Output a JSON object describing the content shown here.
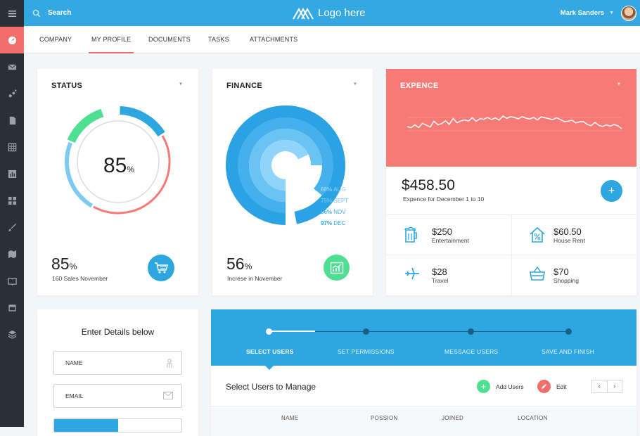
{
  "topbar": {
    "search_label": "Search",
    "logo_text": "Logo here",
    "user_name": "Mark Sanders"
  },
  "tabs": [
    "COMPANY",
    "MY PROFILE",
    "DOCUMENTS",
    "TASKS",
    "ATTACHMENTS"
  ],
  "active_tab": "MY PROFILE",
  "sidebar_icons": [
    "menu-icon",
    "dashboard-icon",
    "mail-icon",
    "graph-nodes-icon",
    "document-icon",
    "table-icon",
    "bar-chart-icon",
    "widgets-icon",
    "brush-icon",
    "map-icon",
    "book-icon",
    "calendar-icon",
    "layers-icon"
  ],
  "status": {
    "title": "STATUS",
    "center_value": "85",
    "center_unit": "%",
    "value": "85",
    "unit": "%",
    "caption": "160 Sales November",
    "ring_segments_percent": {
      "blue": 16,
      "red": 42,
      "light_blue": 23,
      "green": 14
    }
  },
  "finance": {
    "title": "FINANCE",
    "value": "56",
    "unit": "%",
    "caption": "Increse in November",
    "rings": [
      {
        "value": "68%",
        "label": "AUG",
        "color": "#8fd5fb"
      },
      {
        "value": "75%",
        "label": "SEPT",
        "color": "#6ac3f3"
      },
      {
        "value": "86%",
        "label": "NOV",
        "color": "#45b1ec"
      },
      {
        "value": "97%",
        "label": "DEC",
        "color": "#2aa2e4"
      }
    ]
  },
  "expence": {
    "title": "EXPENCE",
    "amount": "$458.50",
    "caption": "Expence for December 1 to 10",
    "items": [
      {
        "amount": "$250",
        "label": "Entertainment",
        "icon": "beer-icon"
      },
      {
        "amount": "$60.50",
        "label": "House Rent",
        "icon": "house-percent-icon"
      },
      {
        "amount": "$28",
        "label": "Travel",
        "icon": "airplane-icon"
      },
      {
        "amount": "$70",
        "label": "Shopping",
        "icon": "basket-icon"
      }
    ]
  },
  "form": {
    "title": "Enter Details below",
    "name_placeholder": "NAME",
    "email_placeholder": "EMAIL"
  },
  "wizard": {
    "steps": [
      "SELECT USERS",
      "SET PERMISSIONS",
      "MESSAGE USERS",
      "SAVE AND FINISH"
    ],
    "active_step": "SELECT USERS",
    "panel_title": "Select Users to Manage",
    "add_label": "Add Users",
    "edit_label": "Edit",
    "columns": [
      "NAME",
      "POSSION",
      "JOINED",
      "LOCATION"
    ]
  },
  "colors": {
    "blue": "#33a8e3",
    "red": "#f26e6c",
    "green": "#4fdf93",
    "dark": "#2a3038"
  }
}
